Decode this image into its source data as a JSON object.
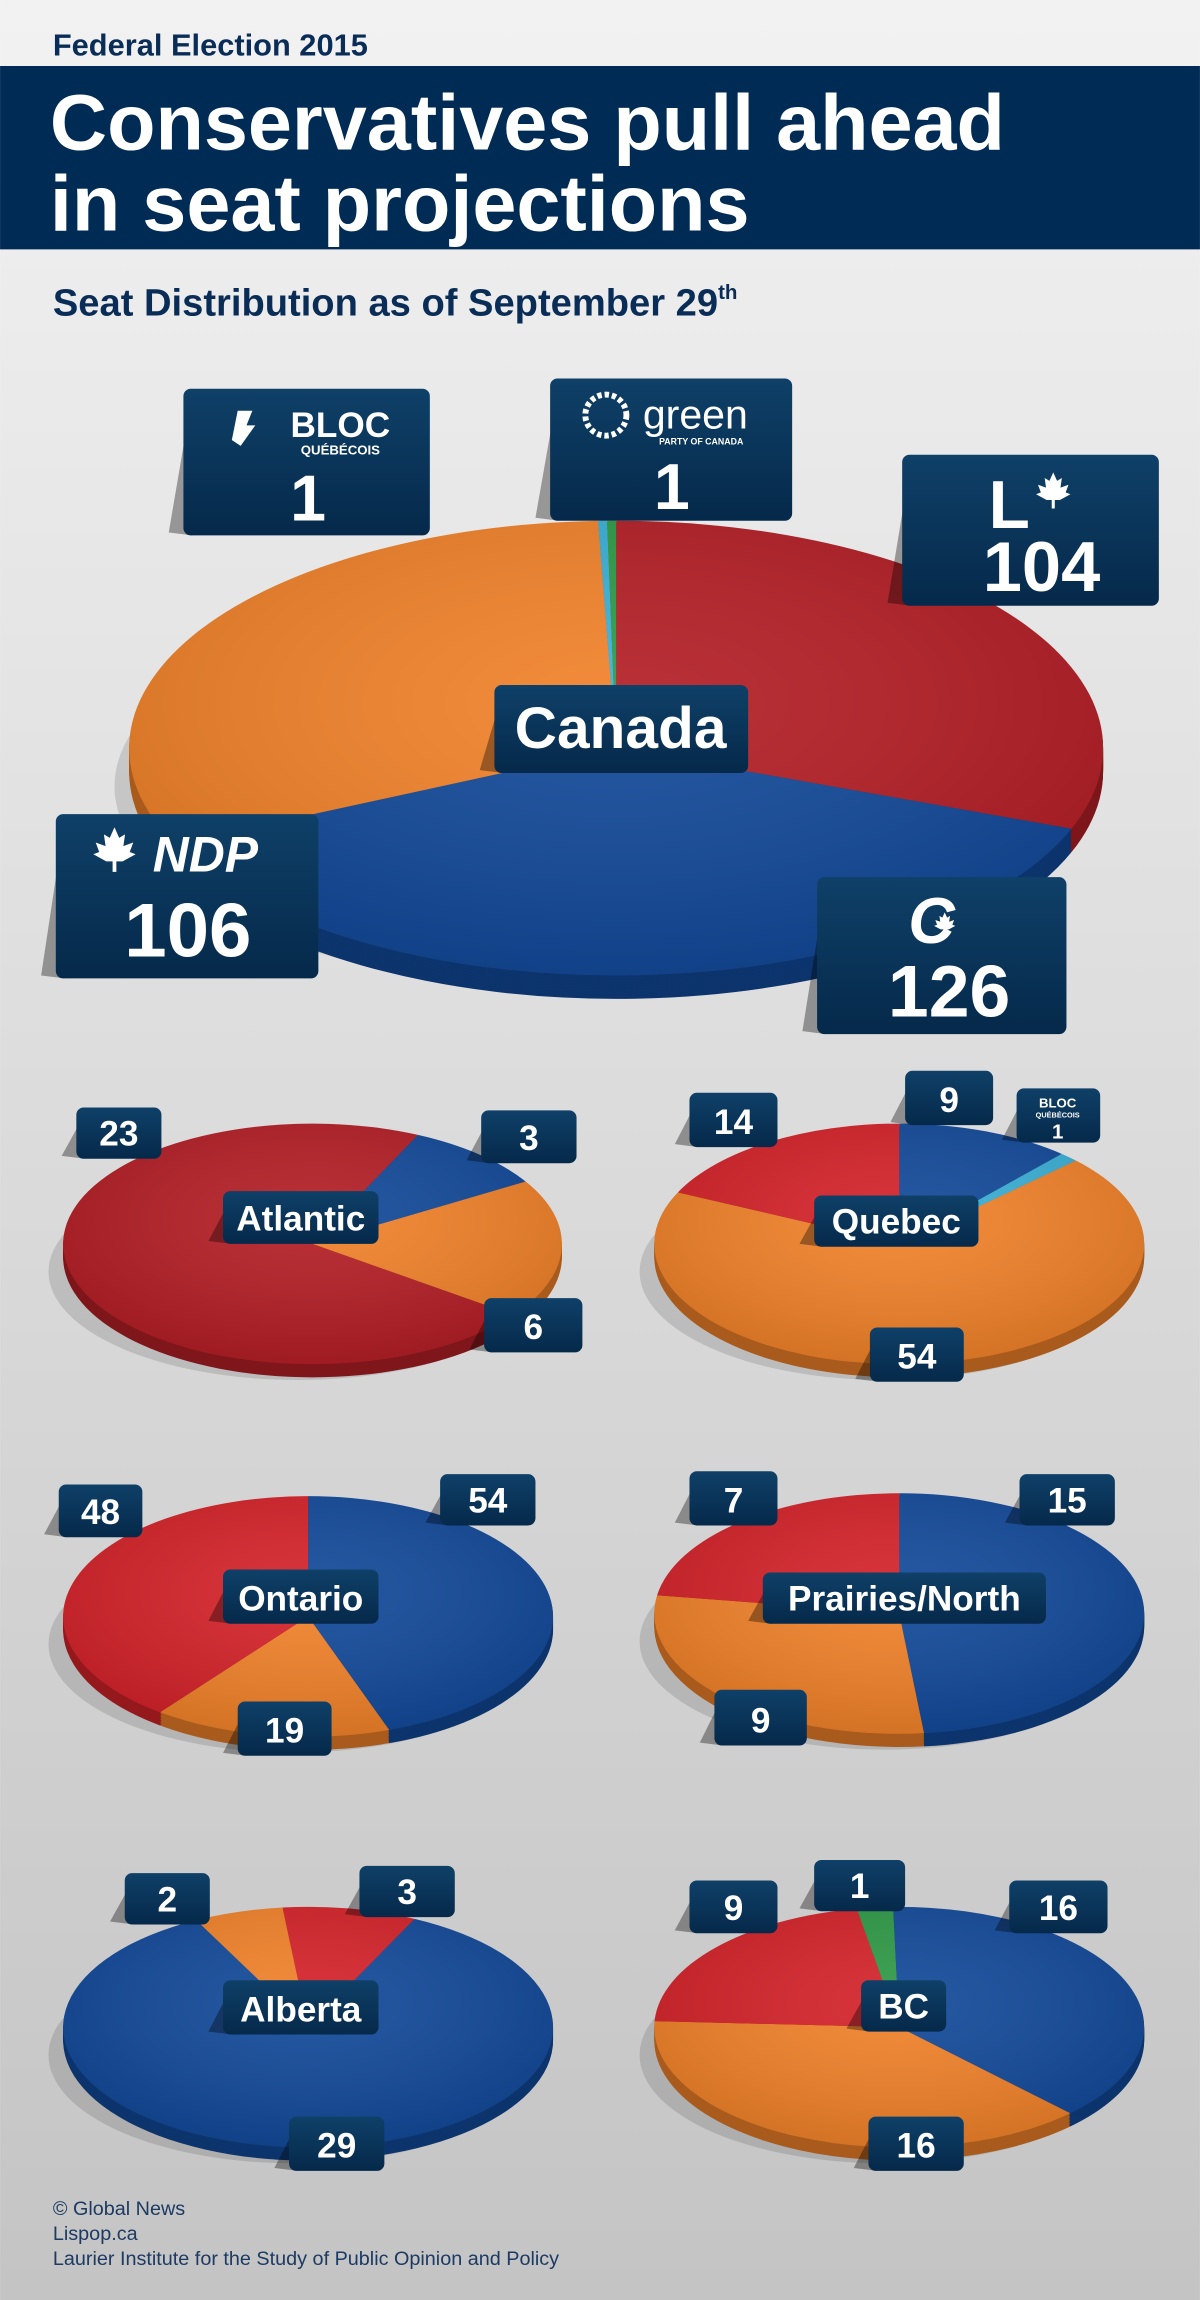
{
  "header": {
    "kicker": "Federal Election 2015",
    "title_line1": "Conservatives pull ahead",
    "title_line2": "in seat projections",
    "subtitle": "Seat Distribution as of September 29",
    "subtitle_sup": "th"
  },
  "logos": {
    "bloc_name": "BLOC",
    "bloc_sub": "QUÉBÉCOIS",
    "green_name": "green",
    "green_sub": "PARTY OF CANADA",
    "liberal_letter": "L",
    "ndp_name": "NDP",
    "conservative_letter": "C"
  },
  "colors": {
    "liberal": "#b41f26",
    "liberal_regional": "#d4232a",
    "conservative": "#134a9a",
    "ndp": "#f1822a",
    "bloc": "#3bb0d6",
    "green": "#2f9a47",
    "navy": "#002b55"
  },
  "chart_data": [
    {
      "type": "pie",
      "title": "Canada",
      "slices": [
        {
          "party": "liberal",
          "value": 104
        },
        {
          "party": "conservative",
          "value": 126
        },
        {
          "party": "ndp",
          "value": 106
        },
        {
          "party": "bloc",
          "value": 1
        },
        {
          "party": "green",
          "value": 1
        }
      ]
    },
    {
      "type": "pie",
      "title": "Atlantic",
      "slices": [
        {
          "party": "conservative",
          "value": 3
        },
        {
          "party": "ndp",
          "value": 6
        },
        {
          "party": "liberal",
          "value": 23
        }
      ]
    },
    {
      "type": "pie",
      "title": "Quebec",
      "slices": [
        {
          "party": "conservative",
          "value": 9
        },
        {
          "party": "bloc",
          "value": 1
        },
        {
          "party": "ndp",
          "value": 54
        },
        {
          "party": "liberal",
          "value": 14
        }
      ]
    },
    {
      "type": "pie",
      "title": "Ontario",
      "slices": [
        {
          "party": "conservative",
          "value": 54
        },
        {
          "party": "ndp",
          "value": 19
        },
        {
          "party": "liberal",
          "value": 48
        }
      ]
    },
    {
      "type": "pie",
      "title": "Prairies/North",
      "slices": [
        {
          "party": "conservative",
          "value": 15
        },
        {
          "party": "ndp",
          "value": 9
        },
        {
          "party": "liberal",
          "value": 7
        }
      ]
    },
    {
      "type": "pie",
      "title": "Alberta",
      "slices": [
        {
          "party": "liberal",
          "value": 3
        },
        {
          "party": "conservative",
          "value": 29
        },
        {
          "party": "ndp",
          "value": 2
        }
      ]
    },
    {
      "type": "pie",
      "title": "BC",
      "slices": [
        {
          "party": "green",
          "value": 1
        },
        {
          "party": "conservative",
          "value": 16
        },
        {
          "party": "ndp",
          "value": 16
        },
        {
          "party": "liberal",
          "value": 9
        }
      ]
    }
  ],
  "footer": {
    "line1": "© Global News",
    "line2": "Lispop.ca",
    "line3": "Laurier Institute for the Study of Public Opinion and Policy"
  }
}
